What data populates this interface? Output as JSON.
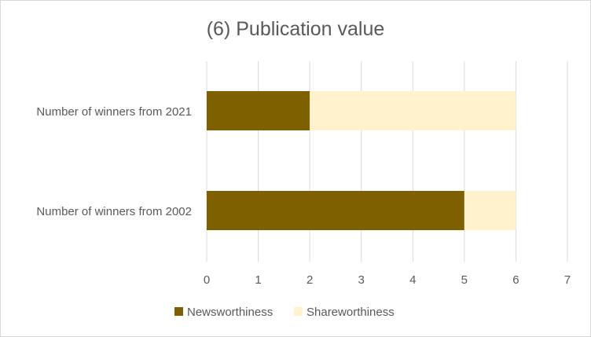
{
  "chart_data": {
    "type": "bar",
    "orientation": "horizontal",
    "stacked": true,
    "title": "(6) Publication value",
    "categories": [
      "Number of winners from 2021",
      "Number of winners from 2002"
    ],
    "series": [
      {
        "name": "Newsworthiness",
        "values": [
          2,
          5
        ],
        "color": "#7f6000"
      },
      {
        "name": "Shareworthiness",
        "values": [
          4,
          1
        ],
        "color": "#fff2cc"
      }
    ],
    "xlim": [
      0,
      7
    ],
    "xticks": [
      0,
      1,
      2,
      3,
      4,
      5,
      6,
      7
    ],
    "grid": "vertical",
    "legend": "bottom"
  }
}
